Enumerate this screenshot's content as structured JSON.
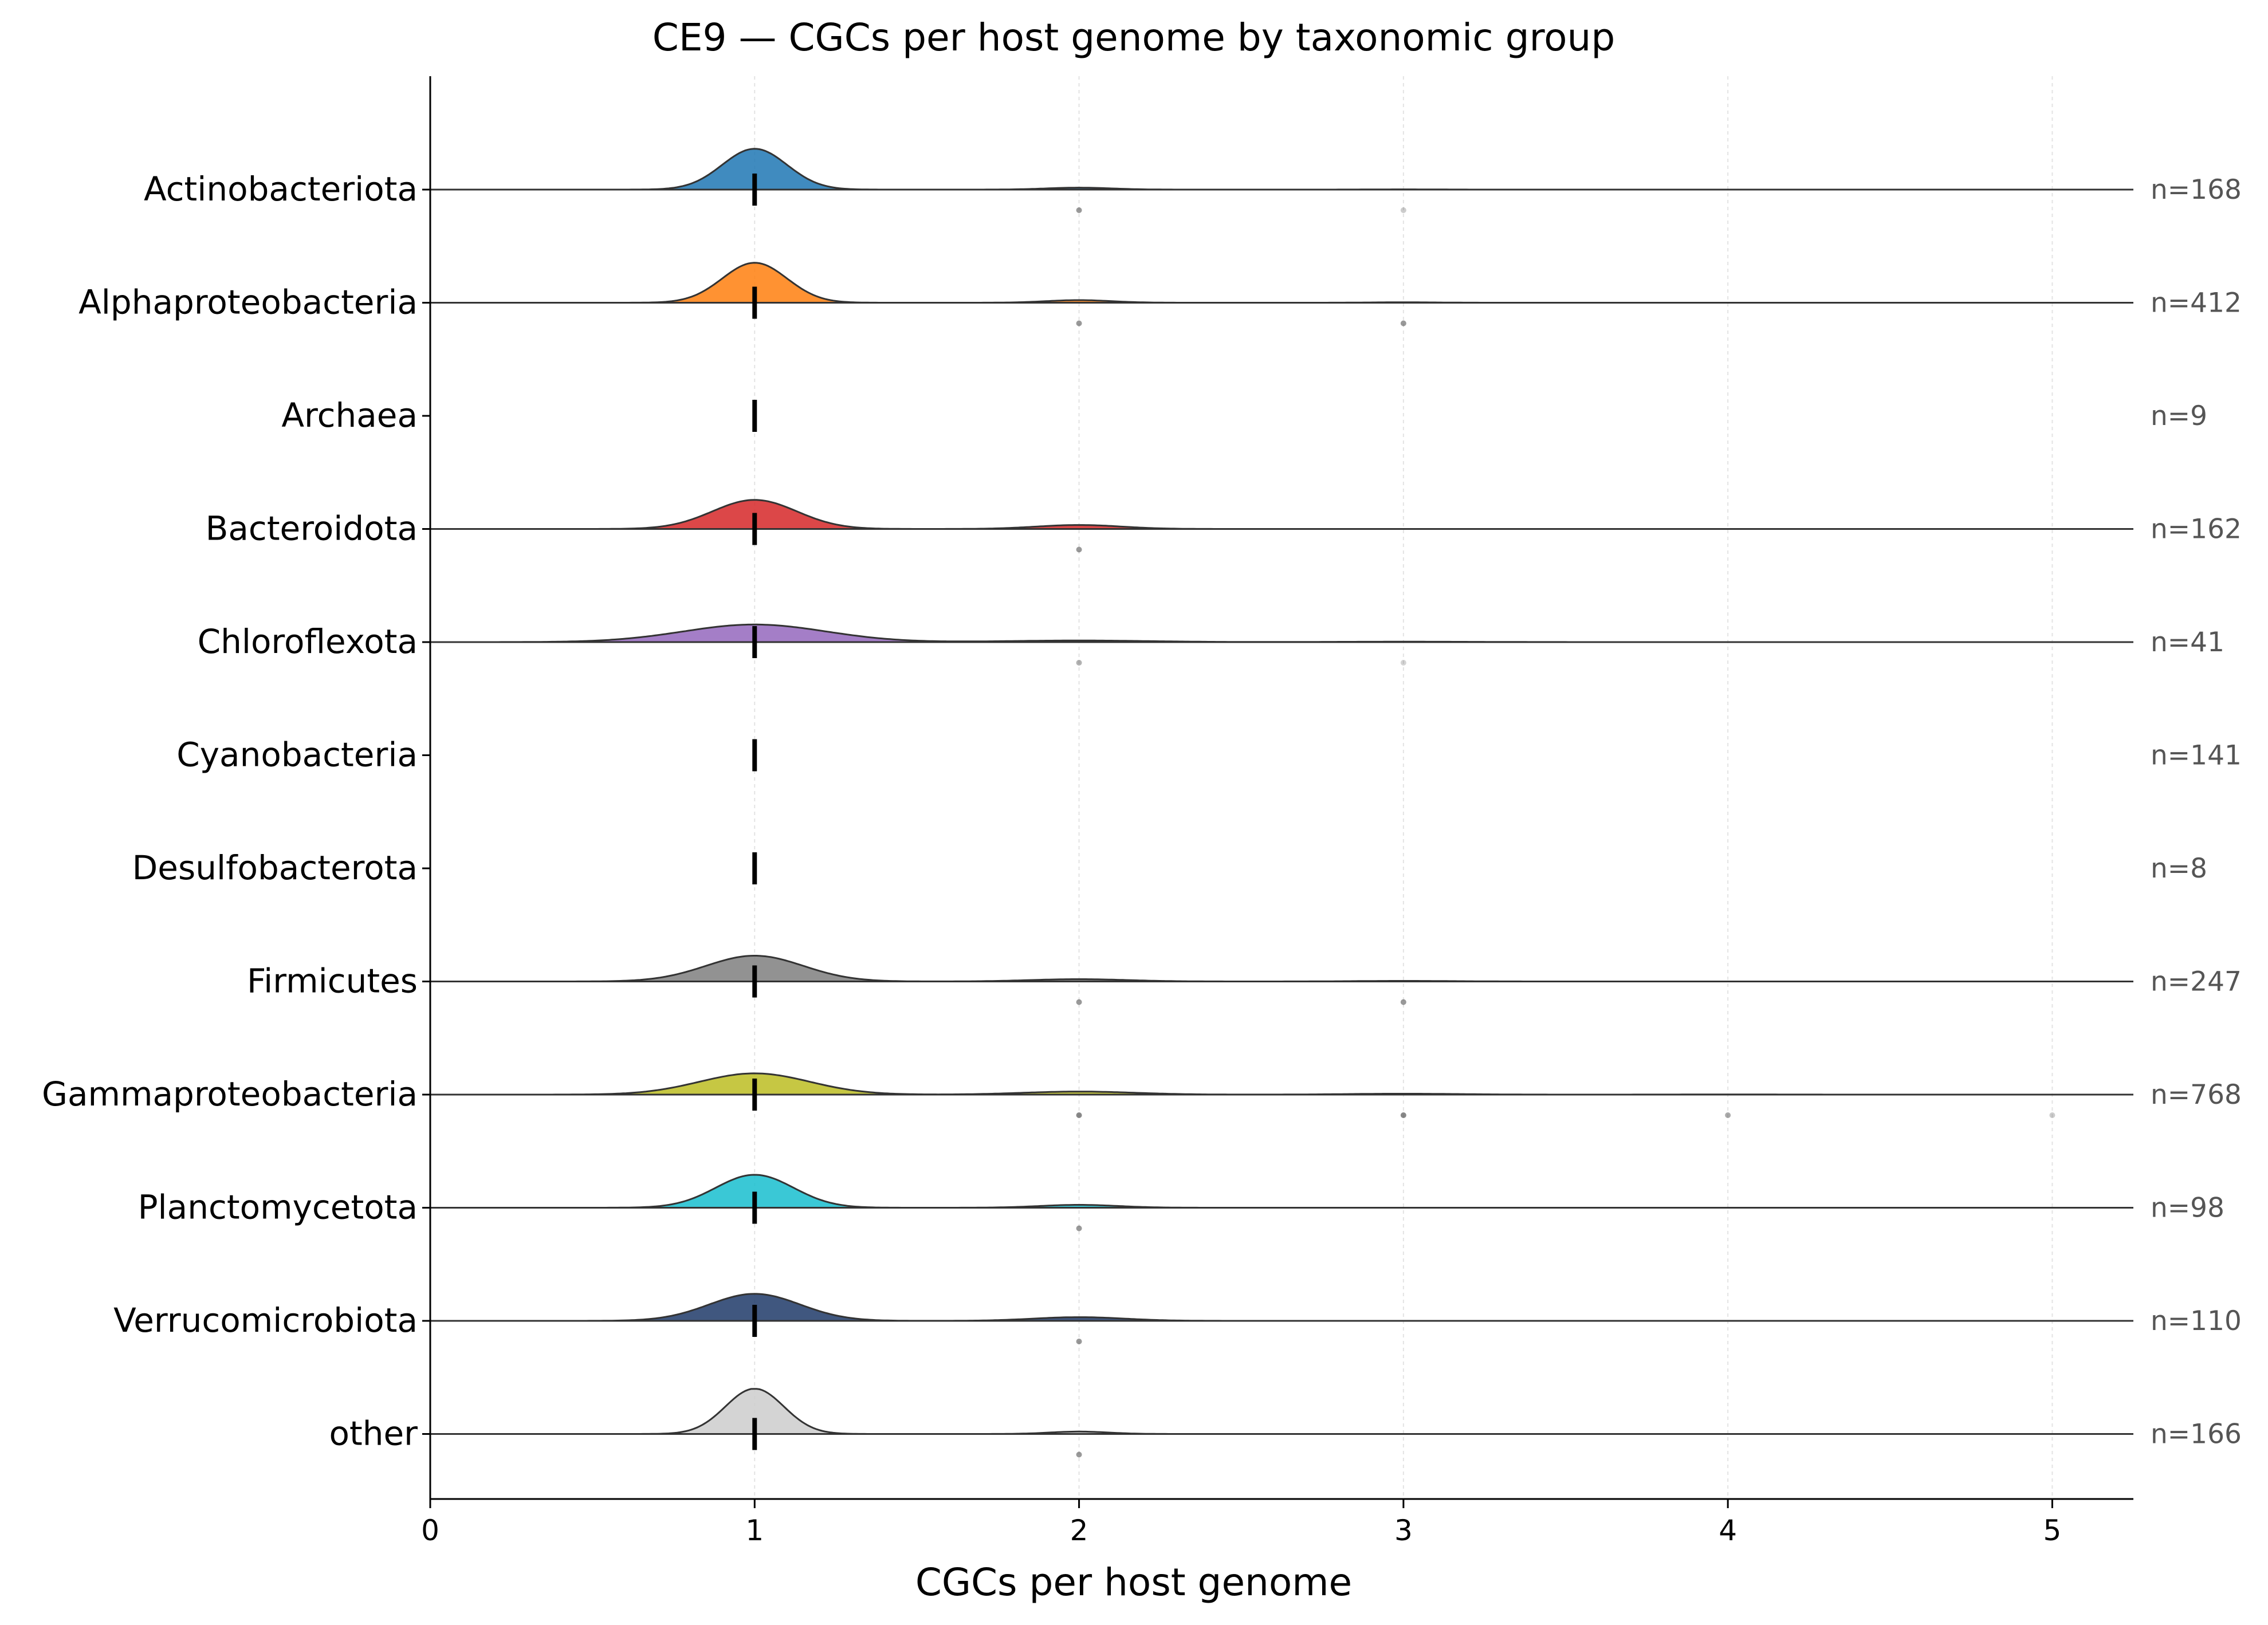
{
  "chart_data": {
    "type": "ridgeline",
    "title": "CE9 — CGCs per host genome by taxonomic group",
    "xlabel": "CGCs per host genome",
    "ylabel": "",
    "xlim": [
      0,
      5.25
    ],
    "x_ticks": [
      "0",
      "1",
      "2",
      "3",
      "4",
      "5"
    ],
    "grid": "vertical dashed",
    "median_marker": "black vertical tick",
    "groups": [
      {
        "name": "Actinobacteriota",
        "n_label": "n=168",
        "n": 168,
        "color": "#1f77b4",
        "median": 1,
        "dist": [
          {
            "x": 1,
            "weight": 0.95
          },
          {
            "x": 2,
            "weight": 0.045
          },
          {
            "x": 3,
            "weight": 0.005
          }
        ],
        "bandwidth": 0.1,
        "outliers": [
          {
            "x": 2,
            "alpha": 0.6
          },
          {
            "x": 3,
            "alpha": 0.3
          }
        ]
      },
      {
        "name": "Alphaproteobacteria",
        "n_label": "n=412",
        "n": 412,
        "color": "#ff7f0e",
        "median": 1,
        "dist": [
          {
            "x": 1,
            "weight": 0.93
          },
          {
            "x": 2,
            "weight": 0.06
          },
          {
            "x": 3,
            "weight": 0.01
          }
        ],
        "bandwidth": 0.1,
        "outliers": [
          {
            "x": 2,
            "alpha": 0.6
          },
          {
            "x": 3,
            "alpha": 0.6
          }
        ]
      },
      {
        "name": "Archaea",
        "n_label": "n=9",
        "n": 9,
        "color": "#808080",
        "median": 1,
        "dist": [],
        "bandwidth": 0.1,
        "outliers": []
      },
      {
        "name": "Bacteroidota",
        "n_label": "n=162",
        "n": 162,
        "color": "#d62728",
        "median": 1,
        "dist": [
          {
            "x": 1,
            "weight": 0.88
          },
          {
            "x": 2,
            "weight": 0.12
          }
        ],
        "bandwidth": 0.13,
        "outliers": [
          {
            "x": 2,
            "alpha": 0.6
          }
        ]
      },
      {
        "name": "Chloroflexota",
        "n_label": "n=41",
        "n": 41,
        "color": "#9467bd",
        "median": 1,
        "dist": [
          {
            "x": 1,
            "weight": 0.9
          },
          {
            "x": 2,
            "weight": 0.08
          },
          {
            "x": 3,
            "weight": 0.02
          }
        ],
        "bandwidth": 0.22,
        "outliers": [
          {
            "x": 2,
            "alpha": 0.45
          },
          {
            "x": 3,
            "alpha": 0.25
          }
        ]
      },
      {
        "name": "Cyanobacteria",
        "n_label": "n=141",
        "n": 141,
        "color": "#8c564b",
        "median": 1,
        "dist": [],
        "bandwidth": 0.1,
        "outliers": []
      },
      {
        "name": "Desulfobacterota",
        "n_label": "n=8",
        "n": 8,
        "color": "#e377c2",
        "median": 1,
        "dist": [],
        "bandwidth": 0.1,
        "outliers": []
      },
      {
        "name": "Firmicutes",
        "n_label": "n=247",
        "n": 247,
        "color": "#7f7f7f",
        "median": 1,
        "dist": [
          {
            "x": 1,
            "weight": 0.9
          },
          {
            "x": 2,
            "weight": 0.08
          },
          {
            "x": 3,
            "weight": 0.02
          }
        ],
        "bandwidth": 0.15,
        "outliers": [
          {
            "x": 2,
            "alpha": 0.6
          },
          {
            "x": 3,
            "alpha": 0.6
          }
        ]
      },
      {
        "name": "Gammaproteobacteria",
        "n_label": "n=768",
        "n": 768,
        "color": "#bcbd22",
        "median": 1,
        "dist": [
          {
            "x": 1,
            "weight": 0.84
          },
          {
            "x": 2,
            "weight": 0.12
          },
          {
            "x": 3,
            "weight": 0.035
          },
          {
            "x": 4,
            "weight": 0.005
          }
        ],
        "bandwidth": 0.17,
        "outliers": [
          {
            "x": 2,
            "alpha": 0.7
          },
          {
            "x": 3,
            "alpha": 0.7
          },
          {
            "x": 4,
            "alpha": 0.5
          },
          {
            "x": 5,
            "alpha": 0.3
          }
        ]
      },
      {
        "name": "Planctomycetota",
        "n_label": "n=98",
        "n": 98,
        "color": "#17becf",
        "median": 1,
        "dist": [
          {
            "x": 1,
            "weight": 0.92
          },
          {
            "x": 2,
            "weight": 0.08
          }
        ],
        "bandwidth": 0.12,
        "outliers": [
          {
            "x": 2,
            "alpha": 0.6
          }
        ]
      },
      {
        "name": "Verrucomicrobiota",
        "n_label": "n=110",
        "n": 110,
        "color": "#1f3a68",
        "median": 1,
        "dist": [
          {
            "x": 1,
            "weight": 0.88
          },
          {
            "x": 2,
            "weight": 0.12
          }
        ],
        "bandwidth": 0.14,
        "outliers": [
          {
            "x": 2,
            "alpha": 0.6
          }
        ]
      },
      {
        "name": "other",
        "n_label": "n=166",
        "n": 166,
        "color": "#cccccc",
        "median": 1,
        "dist": [
          {
            "x": 1,
            "weight": 0.95
          },
          {
            "x": 2,
            "weight": 0.05
          }
        ],
        "bandwidth": 0.09,
        "outliers": [
          {
            "x": 2,
            "alpha": 0.6
          }
        ]
      }
    ]
  }
}
